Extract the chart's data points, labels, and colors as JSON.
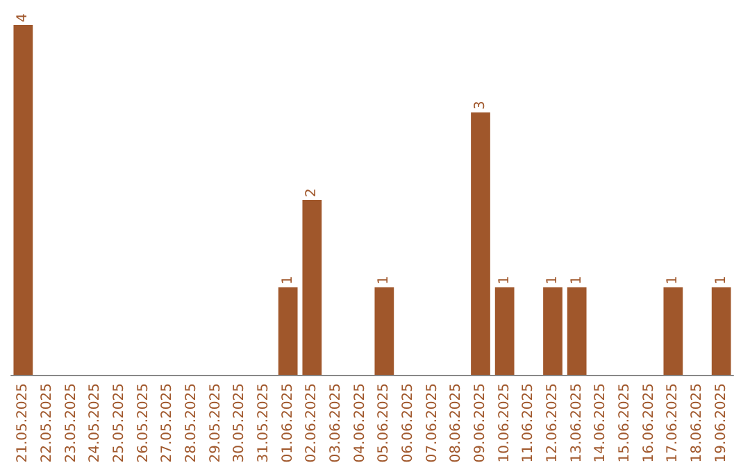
{
  "chart_data": {
    "type": "bar",
    "categories": [
      "21.05.2025",
      "22.05.2025",
      "23.05.2025",
      "24.05.2025",
      "25.05.2025",
      "26.05.2025",
      "27.05.2025",
      "28.05.2025",
      "29.05.2025",
      "30.05.2025",
      "31.05.2025",
      "01.06.2025",
      "02.06.2025",
      "03.06.2025",
      "04.06.2025",
      "05.06.2025",
      "06.06.2025",
      "07.06.2025",
      "08.06.2025",
      "09.06.2025",
      "10.06.2025",
      "11.06.2025",
      "12.06.2025",
      "13.06.2025",
      "14.06.2025",
      "15.06.2025",
      "16.06.2025",
      "17.06.2025",
      "18.06.2025",
      "19.06.2025"
    ],
    "values": [
      4,
      0,
      0,
      0,
      0,
      0,
      0,
      0,
      0,
      0,
      0,
      1,
      2,
      0,
      0,
      1,
      0,
      0,
      0,
      3,
      1,
      0,
      1,
      1,
      0,
      0,
      0,
      1,
      0,
      1
    ],
    "value_labels": [
      "4",
      null,
      null,
      null,
      null,
      null,
      null,
      null,
      null,
      null,
      null,
      "1",
      "2",
      null,
      null,
      "1",
      null,
      null,
      null,
      "3",
      "1",
      null,
      "1",
      "1",
      null,
      null,
      null,
      "1",
      null,
      "1"
    ],
    "color": "#a0572b"
  }
}
